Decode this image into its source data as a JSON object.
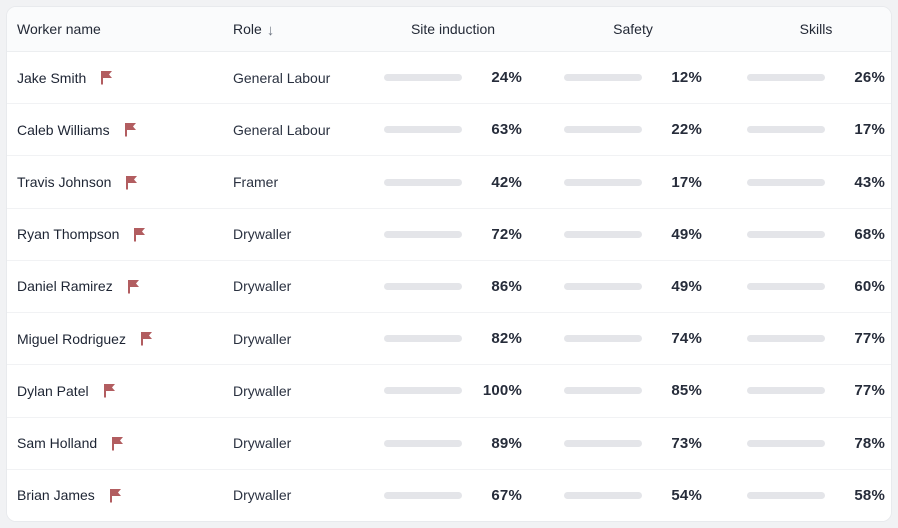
{
  "table": {
    "columns": {
      "worker": "Worker name",
      "role": "Role",
      "site_induction": "Site induction",
      "safety": "Safety",
      "skills": "Skills"
    },
    "sorted_column": "role",
    "sort_direction": "descending",
    "sort_icon": "arrow-down",
    "sort_glyph": "↓",
    "rows": [
      {
        "name": "Jake Smith",
        "flagged": false,
        "role": "General Labour",
        "site_induction": 24,
        "safety": 12,
        "skills": 26
      },
      {
        "name": "Caleb Williams",
        "flagged": false,
        "role": "General Labour",
        "site_induction": 63,
        "safety": 22,
        "skills": 17
      },
      {
        "name": "Travis Johnson",
        "flagged": false,
        "role": "Framer",
        "site_induction": 42,
        "safety": 17,
        "skills": 43
      },
      {
        "name": "Ryan Thompson",
        "flagged": false,
        "role": "Drywaller",
        "site_induction": 72,
        "safety": 49,
        "skills": 68
      },
      {
        "name": "Daniel Ramirez",
        "flagged": false,
        "role": "Drywaller",
        "site_induction": 86,
        "safety": 49,
        "skills": 60
      },
      {
        "name": "Miguel Rodriguez",
        "flagged": true,
        "role": "Drywaller",
        "site_induction": 82,
        "safety": 74,
        "skills": 77
      },
      {
        "name": "Dylan Patel",
        "flagged": true,
        "role": "Drywaller",
        "site_induction": 100,
        "safety": 85,
        "skills": 77
      },
      {
        "name": "Sam Holland",
        "flagged": false,
        "role": "Drywaller",
        "site_induction": 89,
        "safety": 73,
        "skills": 78
      },
      {
        "name": "Brian James",
        "flagged": false,
        "role": "Drywaller",
        "site_induction": 67,
        "safety": 54,
        "skills": 58
      }
    ]
  },
  "colors": {
    "status_low": "#b25d60",
    "status_mid": "#f0c23f",
    "status_high": "#78ae8c",
    "bar_track": "#e4e5e9",
    "flag": "#b25d60"
  },
  "thresholds": {
    "mid_min": 60,
    "high_min": 80
  }
}
